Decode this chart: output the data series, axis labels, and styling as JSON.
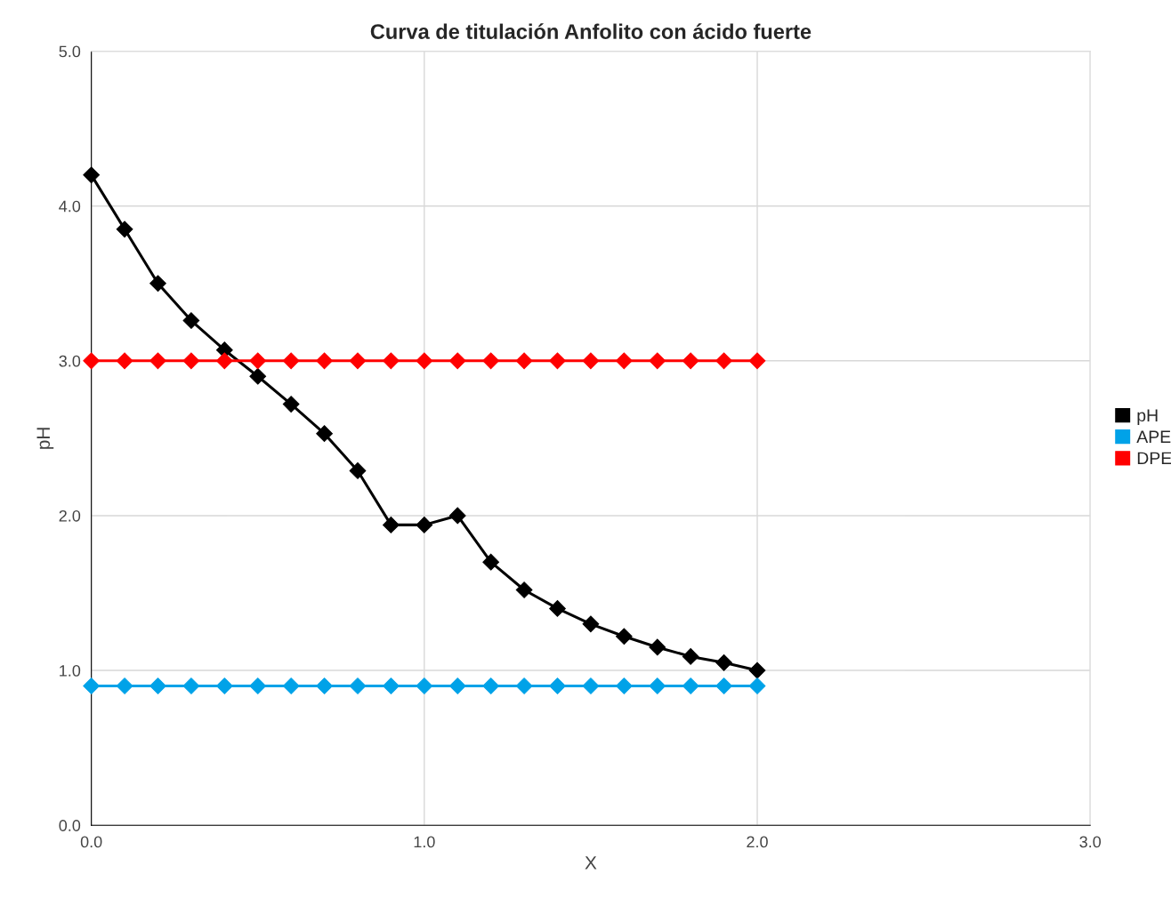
{
  "chart_data": {
    "type": "line",
    "title": "Curva de titulación Anfolito con ácido fuerte",
    "xlabel": "X",
    "ylabel": "pH",
    "x": [
      0.0,
      0.1,
      0.2,
      0.3,
      0.4,
      0.5,
      0.6,
      0.7,
      0.8,
      0.9,
      1.0,
      1.1,
      1.2,
      1.3,
      1.4,
      1.5,
      1.6,
      1.7,
      1.8,
      1.9,
      2.0
    ],
    "series": [
      {
        "name": "pH",
        "color": "#000000",
        "values": [
          4.2,
          3.85,
          3.5,
          3.26,
          3.07,
          2.9,
          2.72,
          2.53,
          2.29,
          1.94,
          1.94,
          2.0,
          1.7,
          1.52,
          1.4,
          1.3,
          1.22,
          1.15,
          1.09,
          1.05,
          1.0
        ]
      },
      {
        "name": "APE",
        "color": "#00a2e8",
        "values": [
          0.9,
          0.9,
          0.9,
          0.9,
          0.9,
          0.9,
          0.9,
          0.9,
          0.9,
          0.9,
          0.9,
          0.9,
          0.9,
          0.9,
          0.9,
          0.9,
          0.9,
          0.9,
          0.9,
          0.9,
          0.9
        ]
      },
      {
        "name": "DPE",
        "color": "#ff0000",
        "values": [
          3.0,
          3.0,
          3.0,
          3.0,
          3.0,
          3.0,
          3.0,
          3.0,
          3.0,
          3.0,
          3.0,
          3.0,
          3.0,
          3.0,
          3.0,
          3.0,
          3.0,
          3.0,
          3.0,
          3.0,
          3.0
        ]
      }
    ],
    "xlim": [
      0,
      3
    ],
    "xticks": [
      {
        "value": 0,
        "label": "0.0"
      },
      {
        "value": 1,
        "label": "1.0"
      },
      {
        "value": 2,
        "label": "2.0"
      },
      {
        "value": 3,
        "label": "3.0"
      }
    ],
    "ylim": [
      0,
      5
    ],
    "yticks": [
      {
        "value": 0,
        "label": "0.0"
      },
      {
        "value": 1,
        "label": "1.0"
      },
      {
        "value": 2,
        "label": "2.0"
      },
      {
        "value": 3,
        "label": "3.0"
      },
      {
        "value": 4,
        "label": "4.0"
      },
      {
        "value": 5,
        "label": "5.0"
      }
    ],
    "grid": true,
    "legend": "right",
    "marker": "diamond",
    "line_style": "solid"
  }
}
